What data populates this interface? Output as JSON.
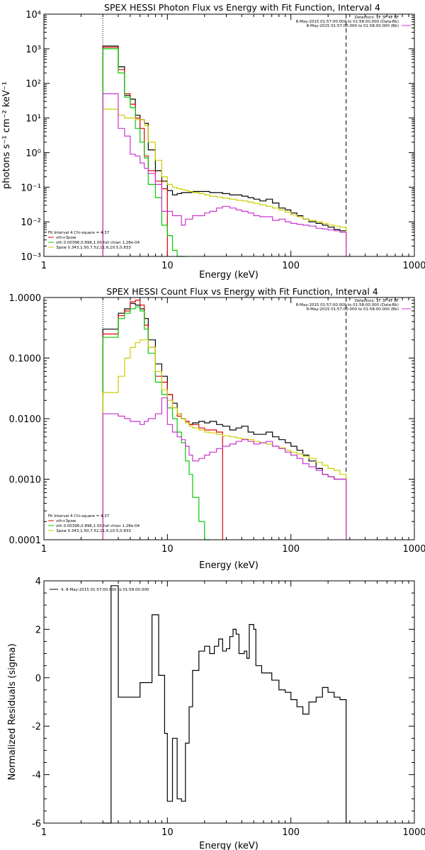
{
  "chart_data": [
    {
      "type": "line",
      "title": "SPEX HESSI Photon Flux vs Energy with Fit Function, Interval 4",
      "xlabel": "Energy (keV)",
      "ylabel": "photons s⁻¹ cm⁻² keV⁻¹",
      "xscale": "log",
      "yscale": "log",
      "xlim": [
        1,
        1000
      ],
      "ylim": [
        0.001,
        10000
      ],
      "x_ticks": [
        1,
        10,
        100,
        1000
      ],
      "x_tick_labels": [
        "1",
        "10",
        "100",
        "1000"
      ],
      "y_ticks": [
        0.001,
        0.01,
        0.1,
        1,
        10,
        100,
        1000,
        10000
      ],
      "y_tick_labels": [
        "10⁻³",
        "10⁻²",
        "10⁻¹",
        "10⁰",
        "10¹",
        "10²",
        "10³",
        "10⁴"
      ],
      "vlines": [
        {
          "x": 3,
          "style": "dotted"
        },
        {
          "x": 280,
          "style": "dashed"
        }
      ],
      "legend_top": [
        {
          "text": "Detectors: 1F 3F 4F 8F",
          "color": "#000000"
        },
        {
          "text": "8-May-2015 01:57:00.000 to 01:58:00.000 (Data-Bk)",
          "color": "#000000"
        },
        {
          "text": "8-May-2015 01:57:00.000 to 01:58:00.000 (Bk)",
          "color": "#cc33cc"
        }
      ],
      "legend_bottom": [
        {
          "text": "Fit Interval 4   Chi-square = 4.37",
          "color": "#000000"
        },
        {
          "text": "vth+3pow",
          "color": "#dd0000"
        },
        {
          "text": "vth 0.00396,0.896,1.00   full chian 1.28e-04",
          "color": "#00cc00"
        },
        {
          "text": "3pow 0.343,1.50,7.52,11.6,10.5,0.833",
          "color": "#cccc00"
        }
      ],
      "series": [
        {
          "name": "Data-Bk",
          "color": "#000000",
          "edges": [
            3,
            3.5,
            4,
            4.5,
            5,
            5.5,
            6,
            6.5,
            7,
            8,
            9,
            10,
            11,
            12,
            13,
            14,
            15,
            16,
            18,
            20,
            22,
            25,
            28,
            32,
            36,
            40,
            45,
            50,
            56,
            63,
            71,
            80,
            90,
            100,
            112,
            125,
            140,
            160,
            180,
            200,
            224,
            250,
            280
          ],
          "values": [
            1200,
            1200,
            300,
            45,
            35,
            12,
            9,
            7,
            1.2,
            0.3,
            0.15,
            0.08,
            0.06,
            0.065,
            0.07,
            0.07,
            0.07,
            0.075,
            0.075,
            0.075,
            0.07,
            0.07,
            0.065,
            0.06,
            0.06,
            0.055,
            0.05,
            0.045,
            0.04,
            0.045,
            0.035,
            0.025,
            0.022,
            0.018,
            0.015,
            0.012,
            0.01,
            0.009,
            0.008,
            0.007,
            0.006,
            0.0055
          ]
        },
        {
          "name": "vth+3pow",
          "color": "#dd0000",
          "edges": [
            3,
            3.5,
            4,
            4.5,
            5,
            5.5,
            6,
            6.5,
            7,
            8,
            9,
            10
          ],
          "values": [
            1100,
            1100,
            250,
            50,
            25,
            10,
            5,
            0.8,
            0.3,
            0.15,
            0.09
          ]
        },
        {
          "name": "vth",
          "color": "#00cc00",
          "edges": [
            3,
            3.5,
            4,
            4.5,
            5,
            5.5,
            6,
            6.5,
            7,
            8,
            9,
            10,
            11,
            12,
            13,
            14
          ],
          "values": [
            1000,
            1000,
            200,
            40,
            20,
            5,
            2,
            0.7,
            0.12,
            0.05,
            0.008,
            0.004,
            0.0015,
            0.0008,
            0.0008
          ]
        },
        {
          "name": "3pow",
          "color": "#cccc00",
          "edges": [
            3,
            3.5,
            4,
            4.5,
            5,
            5.5,
            6,
            6.5,
            7,
            8,
            9,
            10,
            11,
            12,
            13,
            14,
            15,
            16,
            18,
            20,
            22,
            25,
            28,
            32,
            36,
            40,
            45,
            50,
            56,
            63,
            71,
            80,
            90,
            100,
            112,
            125,
            140,
            160,
            180,
            200,
            224,
            250,
            280
          ],
          "values": [
            18,
            18,
            12,
            10,
            10,
            9,
            9,
            6,
            2,
            0.6,
            0.2,
            0.12,
            0.1,
            0.09,
            0.085,
            0.08,
            0.075,
            0.07,
            0.065,
            0.06,
            0.055,
            0.052,
            0.048,
            0.045,
            0.042,
            0.04,
            0.037,
            0.034,
            0.031,
            0.028,
            0.025,
            0.022,
            0.019,
            0.016,
            0.014,
            0.012,
            0.011,
            0.01,
            0.009,
            0.008,
            0.0075,
            0.007
          ]
        },
        {
          "name": "Bk",
          "color": "#cc33cc",
          "edges": [
            3,
            3.5,
            4,
            4.5,
            5,
            5.5,
            6,
            6.5,
            7,
            8,
            9,
            10,
            11,
            12,
            13,
            14,
            15,
            16,
            18,
            20,
            22,
            25,
            28,
            32,
            36,
            40,
            45,
            50,
            56,
            63,
            71,
            80,
            90,
            100,
            112,
            125,
            140,
            160,
            180,
            200,
            224,
            250,
            280
          ],
          "values": [
            50,
            50,
            5,
            3,
            0.9,
            0.8,
            0.5,
            0.35,
            0.25,
            0.12,
            0.02,
            0.02,
            0.015,
            0.015,
            0.008,
            0.012,
            0.012,
            0.015,
            0.015,
            0.018,
            0.02,
            0.025,
            0.028,
            0.025,
            0.022,
            0.02,
            0.018,
            0.015,
            0.014,
            0.014,
            0.011,
            0.012,
            0.01,
            0.009,
            0.0085,
            0.008,
            0.0075,
            0.0065,
            0.0062,
            0.0058,
            0.0055,
            0.005
          ]
        }
      ]
    },
    {
      "type": "line",
      "title": "SPEX HESSI Count Flux vs Energy with Fit Function, Interval 4",
      "xlabel": "Energy (keV)",
      "ylabel": "",
      "xscale": "log",
      "yscale": "log",
      "xlim": [
        1,
        1000
      ],
      "ylim": [
        0.0001,
        1
      ],
      "x_ticks": [
        1,
        10,
        100,
        1000
      ],
      "x_tick_labels": [
        "1",
        "10",
        "100",
        "1000"
      ],
      "y_ticks": [
        0.0001,
        0.001,
        0.01,
        0.1,
        1
      ],
      "y_tick_labels": [
        "0.0001",
        "0.0010",
        "0.0100",
        "0.1000",
        "1.0000"
      ],
      "vlines": [
        {
          "x": 3,
          "style": "dotted"
        },
        {
          "x": 280,
          "style": "dashed"
        }
      ],
      "legend_top": [
        {
          "text": "Detectors: 1F 3F 4F 8F",
          "color": "#000000"
        },
        {
          "text": "8-May-2015 01:57:00.000 to 01:58:00.000 (Data-Bk)",
          "color": "#000000"
        },
        {
          "text": "8-May-2015 01:57:00.000 to 01:58:00.000 (Bk)",
          "color": "#cc33cc"
        }
      ],
      "legend_bottom": [
        {
          "text": "Fit Interval 4   Chi-square = 4.37",
          "color": "#000000"
        },
        {
          "text": "vth+3pow",
          "color": "#dd0000"
        },
        {
          "text": "vth 0.00396,0.896,1.00   full chian 1.28e-04",
          "color": "#00cc00"
        },
        {
          "text": "3pow 0.343,1.50,7.52,11.6,10.5,0.833",
          "color": "#cccc00"
        }
      ],
      "series": [
        {
          "name": "Data-Bk",
          "color": "#000000",
          "edges": [
            3,
            3.5,
            4,
            4.5,
            5,
            5.5,
            6,
            6.5,
            7,
            8,
            9,
            10,
            11,
            12,
            13,
            14,
            15,
            16,
            18,
            20,
            22,
            25,
            28,
            32,
            36,
            40,
            45,
            50,
            56,
            63,
            71,
            80,
            90,
            100,
            112,
            125,
            140,
            160,
            180,
            200,
            224,
            250,
            280
          ],
          "values": [
            0.3,
            0.3,
            0.55,
            0.65,
            0.8,
            0.75,
            0.65,
            0.45,
            0.2,
            0.08,
            0.05,
            0.025,
            0.018,
            0.012,
            0.01,
            0.009,
            0.008,
            0.0085,
            0.009,
            0.0085,
            0.009,
            0.008,
            0.0075,
            0.0065,
            0.007,
            0.0075,
            0.006,
            0.0055,
            0.0055,
            0.006,
            0.005,
            0.0045,
            0.004,
            0.0035,
            0.003,
            0.0025,
            0.002,
            0.0015,
            0.0012,
            0.0011,
            0.001,
            0.001
          ]
        },
        {
          "name": "vth+3pow",
          "color": "#dd0000",
          "edges": [
            3,
            3.5,
            4,
            4.5,
            5,
            5.5,
            6,
            6.5,
            7,
            8,
            9,
            10,
            11,
            12,
            13,
            14,
            15,
            16,
            18,
            20,
            22,
            25,
            28
          ],
          "values": [
            0.25,
            0.25,
            0.5,
            0.6,
            0.85,
            0.9,
            0.75,
            0.35,
            0.15,
            0.05,
            0.04,
            0.025,
            0.015,
            0.011,
            0.01,
            0.009,
            0.008,
            0.008,
            0.007,
            0.0065,
            0.0065,
            0.006
          ]
        },
        {
          "name": "vth",
          "color": "#00cc00",
          "edges": [
            3,
            3.5,
            4,
            4.5,
            5,
            5.5,
            6,
            6.5,
            7,
            8,
            9,
            10,
            11,
            12,
            13,
            14,
            15,
            16,
            18,
            20,
            22
          ],
          "values": [
            0.22,
            0.22,
            0.45,
            0.55,
            0.65,
            0.7,
            0.6,
            0.3,
            0.12,
            0.04,
            0.025,
            0.015,
            0.01,
            0.006,
            0.004,
            0.002,
            0.0012,
            0.0005,
            0.0002,
            5e-05
          ]
        },
        {
          "name": "3pow",
          "color": "#cccc00",
          "edges": [
            3,
            3.5,
            4,
            4.5,
            5,
            5.5,
            6,
            6.5,
            7,
            8,
            9,
            10,
            11,
            12,
            13,
            14,
            15,
            16,
            18,
            20,
            22,
            25,
            28,
            32,
            36,
            40,
            45,
            50,
            56,
            63,
            71,
            80,
            90,
            100,
            112,
            125,
            140,
            160,
            180,
            200,
            224,
            250,
            280
          ],
          "values": [
            0.027,
            0.027,
            0.05,
            0.1,
            0.15,
            0.18,
            0.2,
            0.2,
            0.15,
            0.06,
            0.03,
            0.02,
            0.015,
            0.012,
            0.01,
            0.0085,
            0.0075,
            0.007,
            0.0065,
            0.006,
            0.0058,
            0.0055,
            0.0052,
            0.005,
            0.0048,
            0.0046,
            0.0045,
            0.0042,
            0.004,
            0.0038,
            0.0035,
            0.0033,
            0.003,
            0.0028,
            0.0026,
            0.0024,
            0.0022,
            0.0019,
            0.0017,
            0.0015,
            0.0014,
            0.0012
          ]
        },
        {
          "name": "Bk",
          "color": "#cc33cc",
          "edges": [
            3,
            3.5,
            4,
            4.5,
            5,
            5.5,
            6,
            6.5,
            7,
            8,
            9,
            10,
            11,
            12,
            13,
            14,
            15,
            16,
            18,
            20,
            22,
            25,
            28,
            32,
            36,
            40,
            45,
            50,
            56,
            63,
            71,
            80,
            90,
            100,
            112,
            125,
            140,
            160,
            180,
            200,
            224,
            250,
            280
          ],
          "values": [
            0.012,
            0.012,
            0.011,
            0.01,
            0.009,
            0.009,
            0.008,
            0.009,
            0.01,
            0.012,
            0.022,
            0.008,
            0.006,
            0.005,
            0.0045,
            0.0035,
            0.0025,
            0.002,
            0.0022,
            0.0025,
            0.0028,
            0.0032,
            0.0035,
            0.0038,
            0.0042,
            0.0045,
            0.0042,
            0.0038,
            0.004,
            0.0042,
            0.0035,
            0.0032,
            0.0028,
            0.0025,
            0.0022,
            0.0018,
            0.0016,
            0.0014,
            0.0012,
            0.0011,
            0.001,
            0.001
          ]
        }
      ]
    },
    {
      "type": "line",
      "title": "",
      "xlabel": "Energy (keV)",
      "ylabel": "Normalized Residuals (sigma)",
      "xscale": "log",
      "yscale": "linear",
      "xlim": [
        1,
        1000
      ],
      "ylim": [
        -6,
        4
      ],
      "x_ticks": [
        1,
        10,
        100,
        1000
      ],
      "x_tick_labels": [
        "1",
        "10",
        "100",
        "1000"
      ],
      "y_ticks": [
        -6,
        -4,
        -2,
        0,
        2,
        4
      ],
      "y_tick_labels": [
        "-6",
        "-4",
        "-2",
        "0",
        "2",
        "4"
      ],
      "vlines": [],
      "legend_top": [],
      "legend_bottom": [],
      "legend_inset": {
        "text": "4.  8-May-2015 01:57:00.000 to 01:58:00.000",
        "color": "#000000"
      },
      "series": [
        {
          "name": "4.",
          "color": "#000000",
          "edges": [
            3,
            3.5,
            4,
            4.5,
            5,
            5.5,
            6,
            6.5,
            7,
            7.5,
            8,
            8.5,
            9,
            9.5,
            10,
            11,
            12,
            13,
            14,
            15,
            16,
            18,
            20,
            22,
            24,
            26,
            28,
            30,
            32,
            34,
            36,
            38,
            40,
            42,
            44,
            46,
            48,
            50,
            52,
            55,
            58,
            61,
            65,
            70,
            75,
            80,
            85,
            90,
            95,
            100,
            106,
            112,
            118,
            125,
            132,
            140,
            150,
            160,
            170,
            180,
            190,
            200,
            212,
            224,
            237,
            250,
            265,
            280
          ],
          "values": [
            -6,
            3.8,
            -0.8,
            -0.8,
            -0.8,
            -0.8,
            -0.2,
            -0.2,
            -0.2,
            2.6,
            2.6,
            0.1,
            0.1,
            -2.3,
            -5.1,
            -2.5,
            -5.0,
            -5.1,
            -2.7,
            -1.2,
            0.3,
            1.1,
            1.3,
            1.0,
            1.3,
            1.6,
            1.1,
            1.2,
            1.7,
            2.0,
            1.8,
            1.0,
            1.0,
            1.1,
            0.8,
            2.2,
            2.2,
            2.0,
            0.5,
            0.5,
            0.2,
            0.2,
            0.2,
            -0.1,
            -0.1,
            -0.5,
            -0.5,
            -0.6,
            -0.6,
            -0.9,
            -0.9,
            -1.2,
            -1.2,
            -1.5,
            -1.5,
            -1.0,
            -1.0,
            -0.8,
            -0.8,
            -0.4,
            -0.4,
            -0.6,
            -0.6,
            -0.8,
            -0.8,
            -0.9,
            -0.9
          ]
        }
      ]
    }
  ]
}
